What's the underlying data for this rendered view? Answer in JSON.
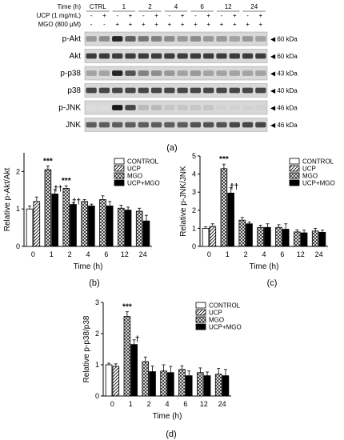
{
  "western_blot": {
    "rows": [
      {
        "label": "Time (h)",
        "groups": [
          "CTRL",
          "1",
          "2",
          "4",
          "6",
          "12",
          "24"
        ]
      },
      {
        "label": "UCP (1 mg/mL)",
        "marks": [
          "-",
          "+",
          "-",
          "+",
          "-",
          "+",
          "-",
          "+",
          "-",
          "+",
          "-",
          "+",
          "-",
          "+"
        ]
      },
      {
        "label": "MGO (800 μM)",
        "marks": [
          "-",
          "-",
          "+",
          "+",
          "+",
          "+",
          "+",
          "+",
          "+",
          "+",
          "+",
          "+",
          "+",
          "+"
        ]
      }
    ],
    "bands": [
      {
        "name": "p-Akt",
        "kda": "60 kDa",
        "intensity": [
          0.45,
          0.5,
          0.95,
          0.7,
          0.6,
          0.55,
          0.5,
          0.45,
          0.5,
          0.45,
          0.45,
          0.4,
          0.45,
          0.4
        ]
      },
      {
        "name": "Akt",
        "kda": "60 kDa",
        "intensity": [
          0.85,
          0.85,
          0.85,
          0.85,
          0.85,
          0.85,
          0.85,
          0.85,
          0.85,
          0.85,
          0.85,
          0.85,
          0.85,
          0.85
        ]
      },
      {
        "name": "p-p38",
        "kda": "43 kDa",
        "intensity": [
          0.4,
          0.4,
          0.95,
          0.75,
          0.55,
          0.5,
          0.45,
          0.4,
          0.45,
          0.4,
          0.4,
          0.4,
          0.4,
          0.4
        ]
      },
      {
        "name": "p38",
        "kda": "40 kDa",
        "intensity": [
          0.8,
          0.8,
          0.8,
          0.8,
          0.8,
          0.8,
          0.8,
          0.8,
          0.8,
          0.8,
          0.8,
          0.8,
          0.8,
          0.8
        ]
      },
      {
        "name": "p-JNK",
        "kda": "46 kDa",
        "intensity": [
          0.15,
          0.15,
          1.0,
          0.8,
          0.3,
          0.3,
          0.25,
          0.25,
          0.25,
          0.25,
          0.2,
          0.2,
          0.2,
          0.2
        ]
      },
      {
        "name": "JNK",
        "kda": "46 kDa",
        "intensity": [
          0.7,
          0.7,
          0.7,
          0.7,
          0.7,
          0.7,
          0.7,
          0.7,
          0.75,
          0.75,
          0.75,
          0.8,
          0.8,
          0.8
        ]
      }
    ],
    "panel_label": "(a)"
  },
  "chart_data": [
    {
      "type": "bar",
      "panel_label": "(b)",
      "ylabel": "Relative p-Akt/Akt",
      "xlabel": "Time (h)",
      "ylim": [
        0,
        2.5
      ],
      "yticks": [
        "0",
        "1",
        "2"
      ],
      "categories": [
        "0",
        "1",
        "2",
        "4",
        "6",
        "12",
        "24"
      ],
      "legend": [
        "CONTROL",
        "UCP",
        "MGO",
        "UCP+MGO"
      ],
      "legend_position": "top-right",
      "bars": [
        {
          "cat": 0,
          "series": 0,
          "value": 1.0,
          "err": 0.08
        },
        {
          "cat": 0,
          "series": 1,
          "value": 1.2,
          "err": 0.12
        },
        {
          "cat": 1,
          "series": 2,
          "value": 2.05,
          "err": 0.1,
          "sig": "***"
        },
        {
          "cat": 1,
          "series": 3,
          "value": 1.4,
          "err": 0.12,
          "sig": "††"
        },
        {
          "cat": 2,
          "series": 2,
          "value": 1.55,
          "err": 0.07,
          "sig": "***"
        },
        {
          "cat": 2,
          "series": 3,
          "value": 1.12,
          "err": 0.05,
          "sig": "††"
        },
        {
          "cat": 3,
          "series": 2,
          "value": 1.2,
          "err": 0.05
        },
        {
          "cat": 3,
          "series": 3,
          "value": 1.08,
          "err": 0.05
        },
        {
          "cat": 4,
          "series": 2,
          "value": 1.25,
          "err": 0.1
        },
        {
          "cat": 4,
          "series": 3,
          "value": 1.08,
          "err": 0.12
        },
        {
          "cat": 5,
          "series": 2,
          "value": 1.02,
          "err": 0.08
        },
        {
          "cat": 5,
          "series": 3,
          "value": 0.97,
          "err": 0.08
        },
        {
          "cat": 6,
          "series": 2,
          "value": 0.94,
          "err": 0.08
        },
        {
          "cat": 6,
          "series": 3,
          "value": 0.68,
          "err": 0.15
        }
      ]
    },
    {
      "type": "bar",
      "panel_label": "(c)",
      "ylabel": "Relative p-JNK/JNK",
      "xlabel": "Time (h)",
      "ylim": [
        0,
        5
      ],
      "yticks": [
        "0",
        "1",
        "2",
        "3",
        "4",
        "5"
      ],
      "categories": [
        "0",
        "1",
        "2",
        "4",
        "6",
        "12",
        "24"
      ],
      "legend": [
        "CONTROL",
        "UCP",
        "MGO",
        "UCP+MGO"
      ],
      "legend_position": "top-right",
      "bars": [
        {
          "cat": 0,
          "series": 0,
          "value": 1.0,
          "err": 0.08
        },
        {
          "cat": 0,
          "series": 1,
          "value": 1.1,
          "err": 0.15
        },
        {
          "cat": 1,
          "series": 2,
          "value": 4.3,
          "err": 0.25,
          "sig": "***"
        },
        {
          "cat": 1,
          "series": 3,
          "value": 2.95,
          "err": 0.3,
          "sig": "††"
        },
        {
          "cat": 2,
          "series": 2,
          "value": 1.45,
          "err": 0.15
        },
        {
          "cat": 2,
          "series": 3,
          "value": 1.25,
          "err": 0.1
        },
        {
          "cat": 3,
          "series": 2,
          "value": 1.05,
          "err": 0.12
        },
        {
          "cat": 3,
          "series": 3,
          "value": 1.05,
          "err": 0.2
        },
        {
          "cat": 4,
          "series": 2,
          "value": 1.05,
          "err": 0.15
        },
        {
          "cat": 4,
          "series": 3,
          "value": 0.95,
          "err": 0.3
        },
        {
          "cat": 5,
          "series": 2,
          "value": 0.8,
          "err": 0.12
        },
        {
          "cat": 5,
          "series": 3,
          "value": 0.75,
          "err": 0.15
        },
        {
          "cat": 6,
          "series": 2,
          "value": 0.85,
          "err": 0.15
        },
        {
          "cat": 6,
          "series": 3,
          "value": 0.78,
          "err": 0.12
        }
      ]
    },
    {
      "type": "bar",
      "panel_label": "(d)",
      "ylabel": "Relative p-p38/p38",
      "xlabel": "Time (h)",
      "ylim": [
        0,
        3
      ],
      "yticks": [
        "0",
        "1",
        "2",
        "3"
      ],
      "categories": [
        "0",
        "1",
        "2",
        "4",
        "6",
        "12",
        "24"
      ],
      "legend": [
        "CONTROL",
        "UCP",
        "MGO",
        "UCP+MGO"
      ],
      "legend_position": "top-right",
      "bars": [
        {
          "cat": 0,
          "series": 0,
          "value": 1.0,
          "err": 0.05
        },
        {
          "cat": 0,
          "series": 1,
          "value": 0.95,
          "err": 0.08
        },
        {
          "cat": 1,
          "series": 2,
          "value": 2.55,
          "err": 0.15,
          "sig": "***"
        },
        {
          "cat": 1,
          "series": 3,
          "value": 1.65,
          "err": 0.15,
          "sig": "†"
        },
        {
          "cat": 2,
          "series": 2,
          "value": 1.1,
          "err": 0.15
        },
        {
          "cat": 2,
          "series": 3,
          "value": 0.78,
          "err": 0.18
        },
        {
          "cat": 3,
          "series": 2,
          "value": 0.8,
          "err": 0.2
        },
        {
          "cat": 3,
          "series": 3,
          "value": 0.75,
          "err": 0.2
        },
        {
          "cat": 4,
          "series": 2,
          "value": 0.85,
          "err": 0.12
        },
        {
          "cat": 4,
          "series": 3,
          "value": 0.65,
          "err": 0.15
        },
        {
          "cat": 5,
          "series": 2,
          "value": 0.75,
          "err": 0.15
        },
        {
          "cat": 5,
          "series": 3,
          "value": 0.65,
          "err": 0.12
        },
        {
          "cat": 6,
          "series": 2,
          "value": 0.7,
          "err": 0.18
        },
        {
          "cat": 6,
          "series": 3,
          "value": 0.65,
          "err": 0.2
        }
      ]
    }
  ]
}
